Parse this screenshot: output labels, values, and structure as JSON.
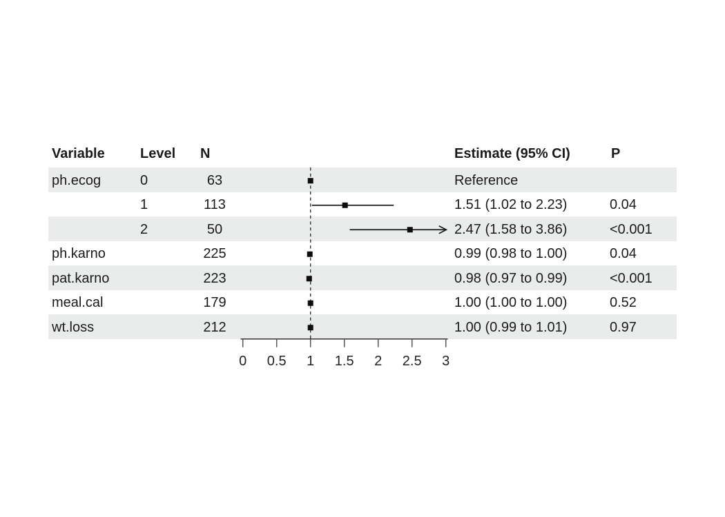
{
  "table": {
    "headers": {
      "variable": "Variable",
      "level": "Level",
      "n": "N",
      "estimate": "Estimate (95% CI)",
      "p": "P"
    }
  },
  "chart_data": {
    "type": "forest",
    "title": "",
    "xlabel": "",
    "xlim": [
      0,
      3
    ],
    "axis_ticks": [
      0,
      0.5,
      1,
      1.5,
      2,
      2.5,
      3
    ],
    "axis_tick_labels": [
      "0",
      "0.5",
      "1",
      "1.5",
      "2",
      "2.5",
      "3"
    ],
    "reference_line": 1,
    "rows": [
      {
        "variable": "ph.ecog",
        "level": "0",
        "n": "63",
        "estimate_label": "Reference",
        "p": "",
        "estimate": 1.0,
        "low": null,
        "high": null,
        "reference": true,
        "clipped": false,
        "shaded": true
      },
      {
        "variable": "",
        "level": "1",
        "n": "113",
        "estimate_label": "1.51 (1.02 to 2.23)",
        "p": "0.04",
        "estimate": 1.51,
        "low": 1.02,
        "high": 2.23,
        "reference": false,
        "clipped": false,
        "shaded": false
      },
      {
        "variable": "",
        "level": "2",
        "n": "50",
        "estimate_label": "2.47 (1.58 to 3.86)",
        "p": "<0.001",
        "estimate": 2.47,
        "low": 1.58,
        "high": 3.86,
        "reference": false,
        "clipped": true,
        "shaded": true
      },
      {
        "variable": "ph.karno",
        "level": "",
        "n": "225",
        "estimate_label": "0.99 (0.98 to 1.00)",
        "p": "0.04",
        "estimate": 0.99,
        "low": 0.98,
        "high": 1.0,
        "reference": false,
        "clipped": false,
        "shaded": false
      },
      {
        "variable": "pat.karno",
        "level": "",
        "n": "223",
        "estimate_label": "0.98 (0.97 to 0.99)",
        "p": "<0.001",
        "estimate": 0.98,
        "low": 0.97,
        "high": 0.99,
        "reference": false,
        "clipped": false,
        "shaded": true
      },
      {
        "variable": "meal.cal",
        "level": "",
        "n": "179",
        "estimate_label": "1.00 (1.00 to 1.00)",
        "p": "0.52",
        "estimate": 1.0,
        "low": 1.0,
        "high": 1.0,
        "reference": false,
        "clipped": false,
        "shaded": false
      },
      {
        "variable": "wt.loss",
        "level": "",
        "n": "212",
        "estimate_label": "1.00 (0.99 to 1.01)",
        "p": "0.97",
        "estimate": 1.0,
        "low": 0.99,
        "high": 1.01,
        "reference": false,
        "clipped": false,
        "shaded": true
      }
    ]
  },
  "colors": {
    "stripe": "#e9ecea",
    "text": "#1a1a1a",
    "line": "#1a1a1a",
    "marker": "#0d0d0d",
    "reference_dash": "#333333",
    "axis_line": "#333333",
    "axis_tick": "#555555",
    "axis_label": "#222222"
  }
}
